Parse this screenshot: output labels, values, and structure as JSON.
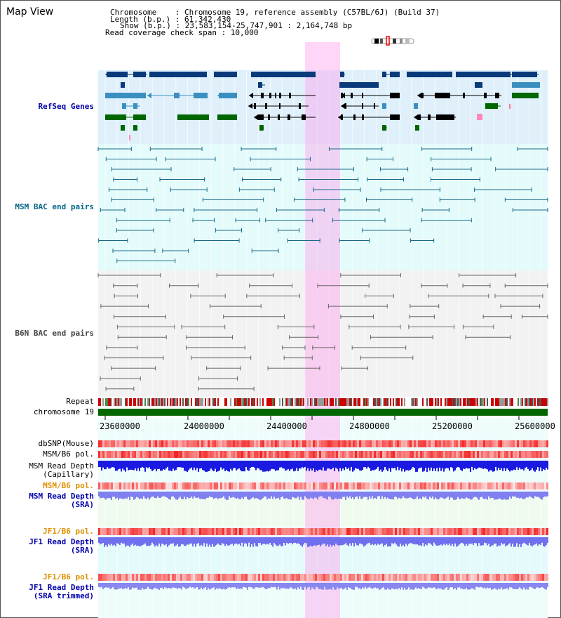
{
  "header": {
    "title": "Map View",
    "chromosome_line": "Chromosome    : Chromosome 19, reference assembly (C57BL/6J) (Build 37)",
    "length_line": "Length (b.p.) : 61,342,430",
    "show_line": "Show (b.p.) : 23,583,154-25,747,901 : 2,164,748 bp",
    "span_line": "Read coverage check span : 10,000"
  },
  "tracks": {
    "refseq": "RefSeq Genes",
    "msm_bac": "MSM BAC end pairs",
    "b6n_bac": "B6N BAC end pairs",
    "repeat": "Repeat",
    "chromosome": "chromosome 19",
    "dbsnp": "dbSNP(Mouse)",
    "msm_b6_pol_1": "MSM/B6 pol.",
    "msm_read_depth_cap_1": "MSM Read Depth",
    "msm_read_depth_cap_2": "(Capillary)",
    "msm_b6_pol_2": "MSM/B6 pol.",
    "msm_read_depth_sra_1": "MSM Read Depth",
    "msm_read_depth_sra_2": "(SRA)",
    "jf1_b6_pol_1": "JF1/B6 pol.",
    "jf1_read_depth_sra_1": "JF1 Read Depth",
    "jf1_read_depth_sra_2": "(SRA)",
    "jf1_b6_pol_2": "JF1/B6 pol.",
    "jf1_read_depth_trim_1": "JF1 Read Depth",
    "jf1_read_depth_trim_2": "(SRA trimmed)"
  },
  "axis": {
    "ticks": [
      "23600000",
      "24000000",
      "24400000",
      "24800000",
      "25200000",
      "25600000"
    ]
  },
  "colors": {
    "refseq_label": "#0000aa",
    "msm_label": "#006688",
    "b6n_label": "#444444",
    "orange_label": "#e09000",
    "blue_label": "#0000aa",
    "highlight": "#ff99ee",
    "chromosome_bar": "#006600"
  }
}
